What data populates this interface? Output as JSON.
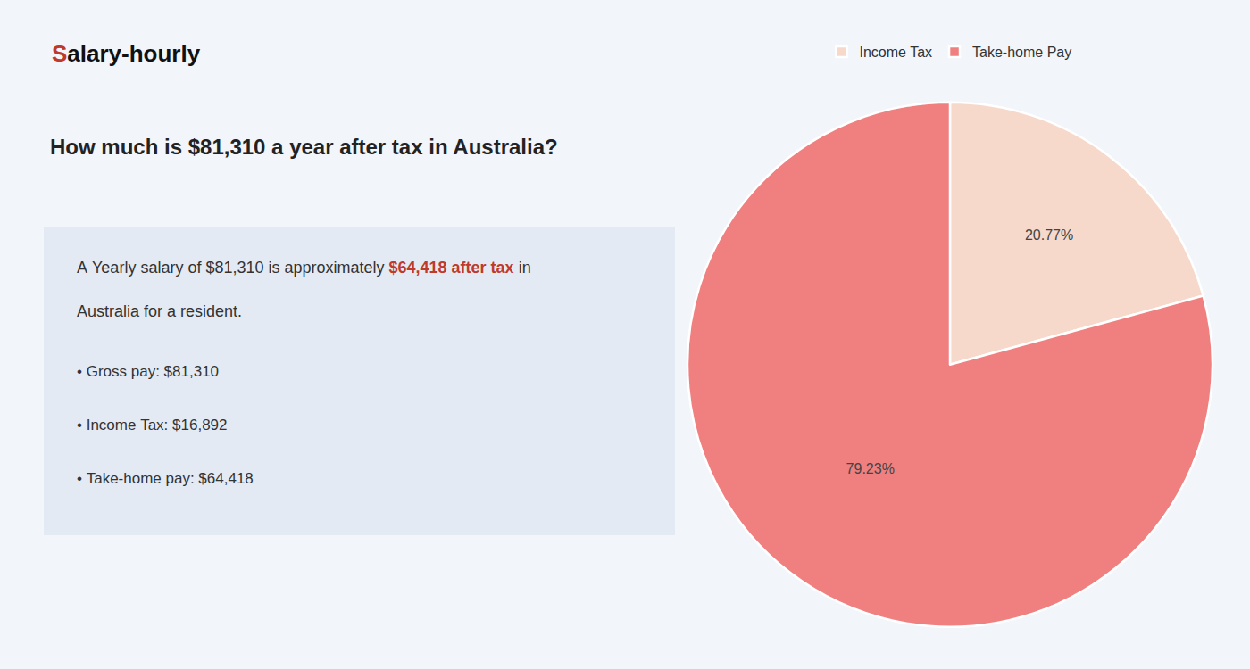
{
  "chart_data": {
    "type": "pie",
    "title": "How much is $81,310 a year after tax in Australia?",
    "categories": [
      "Income Tax",
      "Take-home Pay"
    ],
    "values": [
      20.77,
      79.23
    ],
    "value_labels": [
      "20.77%",
      "79.23%"
    ],
    "colors": [
      "#f7d9cc",
      "#f08080"
    ],
    "data_labels": true,
    "legend": "top",
    "annotations": [
      {
        "parts": [
          {
            "text": "S",
            "color": "#c0392b",
            "bold": true
          },
          {
            "text": "alary-hourly",
            "color": "#111111",
            "bold": true
          }
        ]
      },
      {
        "parts": [
          {
            "text": "A Yearly salary of $81,310 is approximately ",
            "color": "#333333"
          },
          {
            "text": "$64,418 after tax",
            "color": "#c0392b",
            "bold": true
          },
          {
            "text": " in",
            "color": "#333333"
          }
        ]
      },
      {
        "parts": [
          {
            "text": "Australia for a resident.",
            "color": "#333333"
          }
        ]
      },
      {
        "parts": [
          {
            "text": "• Gross pay: $81,310",
            "color": "#333333"
          }
        ]
      },
      {
        "parts": [
          {
            "text": "• Income Tax: $16,892",
            "color": "#333333"
          }
        ]
      },
      {
        "parts": [
          {
            "text": "• Take-home pay: $64,418",
            "color": "#333333"
          }
        ]
      }
    ]
  }
}
